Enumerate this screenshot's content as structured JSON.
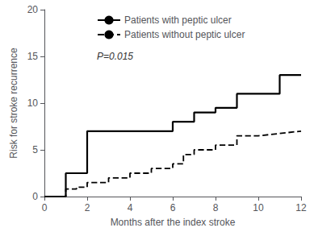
{
  "chart_data": {
    "type": "line",
    "xlabel": "Months after the index stroke",
    "ylabel": "Risk for stroke recurrence",
    "xlim": [
      0,
      12
    ],
    "ylim": [
      0,
      20
    ],
    "xticks": [
      0,
      2,
      4,
      6,
      8,
      10,
      12
    ],
    "yticks": [
      0,
      5,
      10,
      15,
      20
    ],
    "grid": false,
    "legend": "upper left",
    "series": [
      {
        "name": "Patients with peptic ulcer",
        "color": "#000000",
        "line_style": "solid",
        "x": [
          0,
          1,
          1,
          1.5,
          1.5,
          2,
          2,
          6,
          6,
          7,
          7,
          8,
          8,
          9,
          9,
          11,
          11,
          12
        ],
        "values": [
          0,
          0,
          2.5,
          2.5,
          2.5,
          2.5,
          7,
          7,
          8,
          8,
          9,
          9,
          9.5,
          9.5,
          11,
          11,
          13,
          13
        ]
      },
      {
        "name": "Patients without peptic ulcer",
        "color": "#000000",
        "line_style": "dashed",
        "x": [
          0,
          1,
          1,
          1.5,
          1.5,
          2,
          2,
          3,
          3,
          4,
          4,
          5,
          5,
          6,
          6,
          6.5,
          6.5,
          7,
          7,
          8,
          8,
          9,
          9,
          10,
          10,
          12
        ],
        "values": [
          0,
          0,
          0.8,
          0.8,
          1,
          1,
          1.5,
          1.5,
          2,
          2,
          2.5,
          2.5,
          3,
          3,
          3.5,
          3.5,
          4.5,
          4.5,
          5,
          5,
          5.5,
          5.5,
          6.5,
          6.5,
          6.5,
          7
        ]
      }
    ],
    "annotations": [
      "P=0.015"
    ]
  }
}
